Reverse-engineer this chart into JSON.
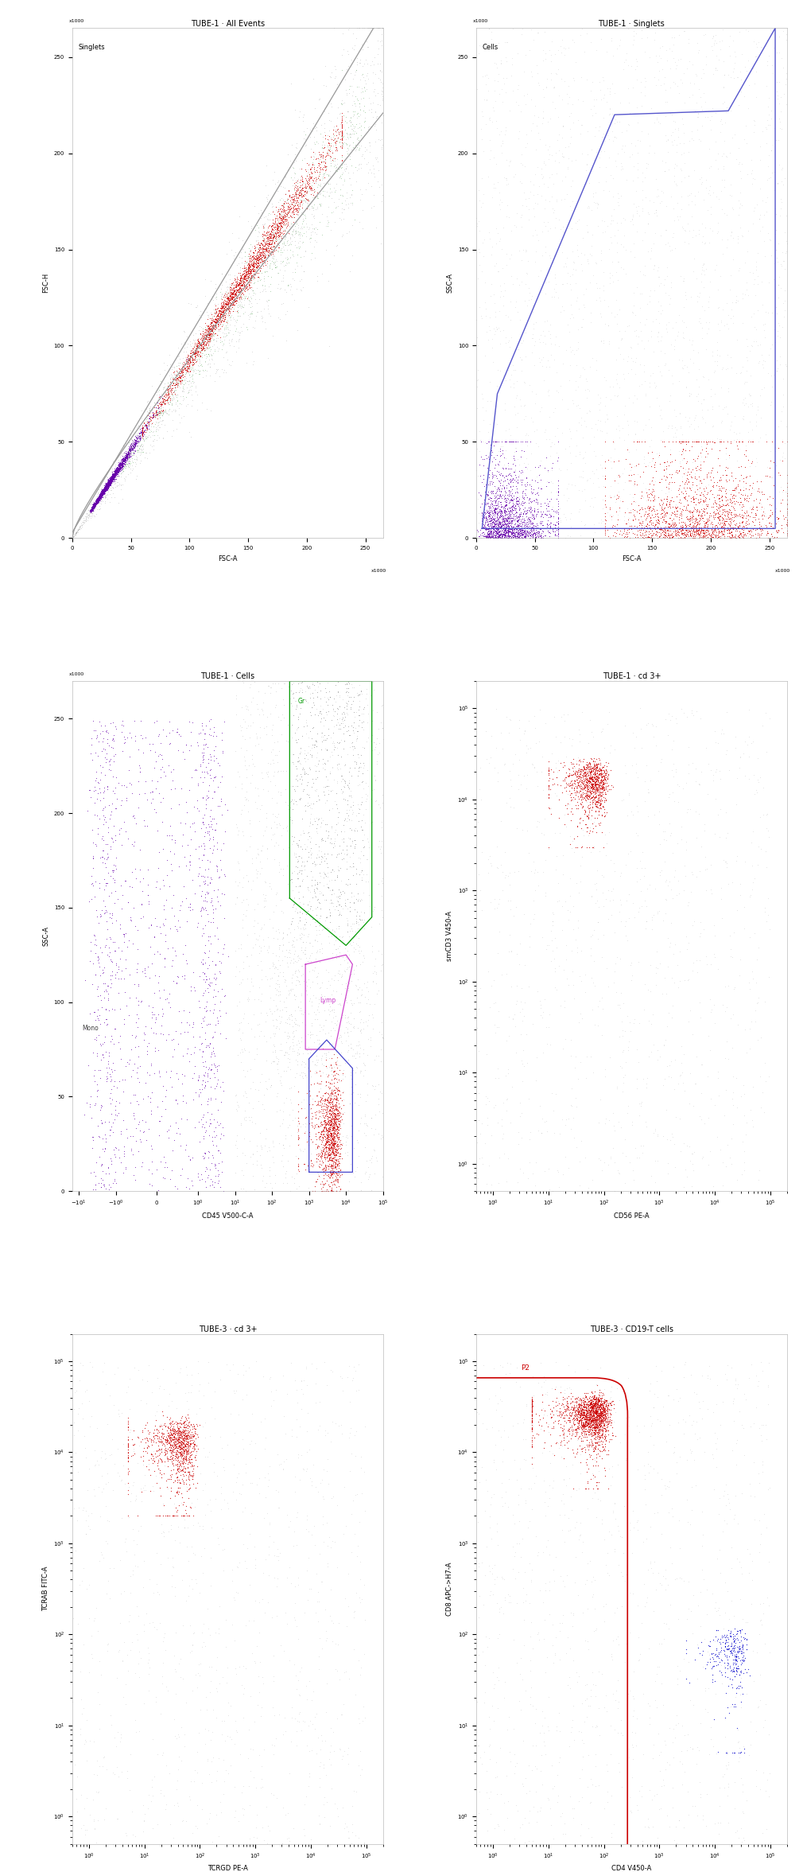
{
  "plots": [
    {
      "title": "TUBE-1 · All Events",
      "xlabel": "FSC-A",
      "ylabel": "FSC-H",
      "ylabel_extra": "Singlets",
      "xlim": [
        0,
        265
      ],
      "ylim": [
        0,
        265
      ],
      "xticks": [
        0,
        50,
        100,
        150,
        200,
        250
      ],
      "yticks": [
        0,
        50,
        100,
        150,
        200,
        250
      ],
      "xunit": "x1000",
      "yunit": "x1000"
    },
    {
      "title": "TUBE-1 · Singlets",
      "xlabel": "FSC-A",
      "ylabel": "SSC-A",
      "ylabel_extra": "Cells",
      "xlim": [
        0,
        265
      ],
      "ylim": [
        0,
        265
      ],
      "xticks": [
        0,
        50,
        100,
        150,
        200,
        250
      ],
      "yticks": [
        0,
        50,
        100,
        150,
        200,
        250
      ],
      "xunit": "x1000",
      "yunit": "x1000"
    },
    {
      "title": "TUBE-1 · Cells",
      "xlabel": "CD45 V500-C-A",
      "ylabel": "SSC-A",
      "yticks": [
        0,
        50,
        100,
        150,
        200,
        250
      ],
      "yunit": "x1000",
      "ylim": [
        0,
        270
      ]
    },
    {
      "title": "TUBE-1 · cd 3+",
      "xlabel": "CD56 PE-A",
      "ylabel": "smCD3 V450-A"
    },
    {
      "title": "TUBE-3 · cd 3+",
      "xlabel": "TCRGD PE-A",
      "ylabel": "TCRAB FITC-A"
    },
    {
      "title": "TUBE-3 · CD19-T cells",
      "xlabel": "CD4 V450-A",
      "ylabel": "CD8 APC->H7-A"
    }
  ],
  "bg_color": "#ffffff",
  "title_fontsize": 7,
  "label_fontsize": 6,
  "tick_fontsize": 5
}
